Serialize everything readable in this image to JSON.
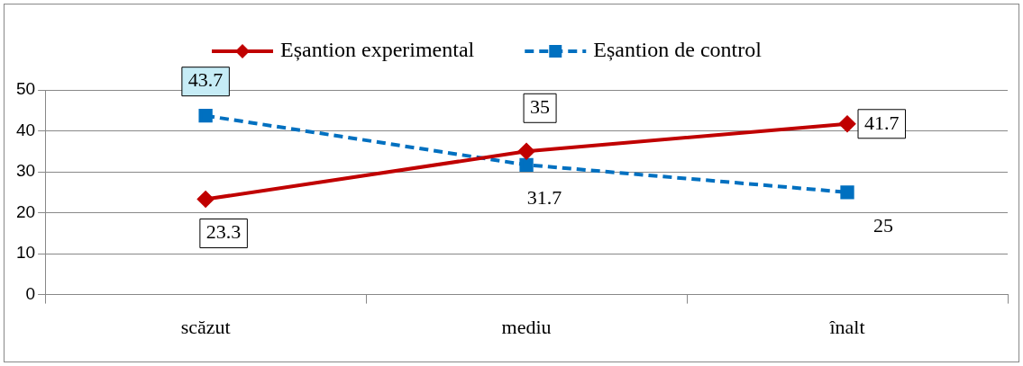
{
  "chart_data": {
    "type": "line",
    "categories": [
      "scăzut",
      "mediu",
      "înalt"
    ],
    "series": [
      {
        "name": "Eșantion experimental",
        "color": "#c00000",
        "values": [
          23.3,
          35,
          41.7
        ],
        "marker": "diamond",
        "line_style": "solid"
      },
      {
        "name": "Eșantion de control",
        "color": "#0070c0",
        "values": [
          43.7,
          31.7,
          25
        ],
        "marker": "square",
        "line_style": "dashed"
      }
    ],
    "ylim": [
      0,
      50
    ],
    "yticks": [
      0,
      10,
      20,
      30,
      40,
      50
    ],
    "grid": "y",
    "legend": "top",
    "data_labels": true
  }
}
